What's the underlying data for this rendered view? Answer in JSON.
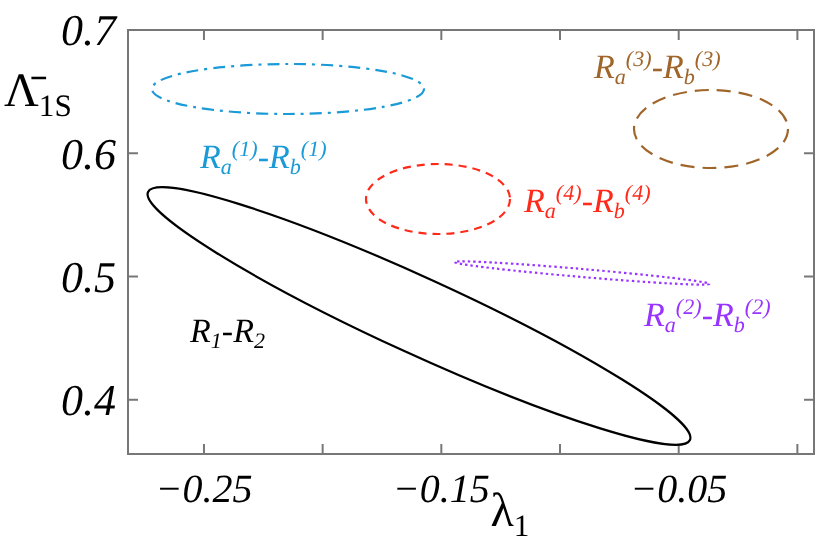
{
  "chart_data": {
    "type": "line",
    "xlabel": "λ$_{1}$",
    "ylabel": "Λ̄$_{1S}$",
    "xlim": [
      -0.282,
      0.007
    ],
    "ylim": [
      0.356,
      0.7
    ],
    "xticks": [
      -0.25,
      {
        "value": -0.2,
        "label": null
      },
      -0.15,
      {
        "value": -0.1,
        "label": null
      },
      -0.05,
      {
        "value": 0,
        "label": null
      }
    ],
    "yticks": [
      0.4,
      0.5,
      0.6,
      0.7
    ],
    "annotations": [
      "R$_{1}$-R$_{2}$",
      "R$_{a}$$^{(1)}$-R$_{b}$$^{(1)}$",
      "R$_{a}$$^{(2)}$-R$_{b}$$^{(2)}$",
      "R$_{a}$$^{(3)}$-R$_{b}$$^{(3)}$",
      "R$_{a}$$^{(4)}$-R$_{b}$$^{(4)}$"
    ]
  }
}
